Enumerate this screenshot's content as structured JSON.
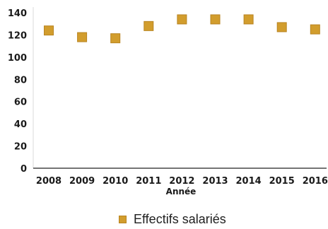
{
  "chart_data": {
    "type": "scatter",
    "title": "",
    "xlabel": "Année",
    "ylabel": "",
    "x": [
      "2008",
      "2009",
      "2010",
      "2011",
      "2012",
      "2013",
      "2014",
      "2015",
      "2016"
    ],
    "series": [
      {
        "name": "Effectifs salariés",
        "values": [
          124,
          118,
          117,
          128,
          134,
          134,
          134,
          127,
          125
        ],
        "color": "#d29d2d"
      }
    ],
    "ylim": [
      0,
      140
    ],
    "yticks": [
      "0",
      "20",
      "40",
      "60",
      "80",
      "100",
      "120",
      "140"
    ],
    "grid": false,
    "legend_position": "bottom"
  }
}
